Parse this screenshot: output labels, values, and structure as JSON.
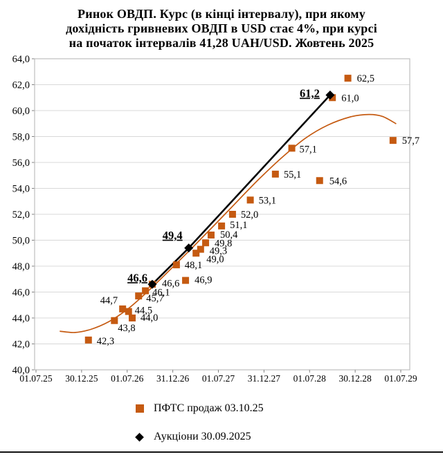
{
  "title": {
    "line1": "Ринок ОВДП. Курс (в кінці інтервалу), при якому",
    "line2": "дохідність гривневих ОВДП в USD стає  4%, при курсі",
    "line3": "на початок інтервалів 41,28 UAH/USD. Жовтень 2025"
  },
  "legend": {
    "items": [
      {
        "label": "ПФТС  продаж 03.10.25",
        "marker": "square",
        "color": "#C55A11"
      },
      {
        "label": "Аукціони 30.09.2025",
        "marker": "diamond",
        "color": "#000000"
      }
    ]
  },
  "colors": {
    "accent_orange": "#C55A11",
    "black": "#000000",
    "grid": "#D8D8D8",
    "plot_border": "#BFBFBF",
    "tick": "#808080"
  },
  "chart_data": {
    "type": "scatter",
    "title": "Ринок ОВДП. Курс (в кінці інтервалу), при якому дохідність гривневих ОВДП в USD стає 4%, при курсі на початок інтервалів 41,28 UAH/USD. Жовтень 2025",
    "grid": "horizontal",
    "legend_position": "bottom",
    "x_axis": {
      "tick_labels": [
        "01.07.25",
        "30.12.25",
        "01.07.26",
        "31.12.26",
        "01.07.27",
        "31.12.27",
        "01.07.28",
        "30.12.28",
        "01.07.29"
      ],
      "note": "point t values are in tick units, 0 = 01.07.25 … 8 = 01.07.29"
    },
    "y_axis": {
      "min": 40,
      "max": 64,
      "step": 2,
      "tick_labels": [
        "64,0",
        "62,0",
        "60,0",
        "58,0",
        "56,0",
        "54,0",
        "52,0",
        "50,0",
        "48,0",
        "46,0",
        "44,0",
        "42,0",
        "40,0"
      ]
    },
    "series": [
      {
        "name": "ПФТС  продаж 03.10.25",
        "marker": "square",
        "color": "#C55A11",
        "points": [
          {
            "t": 1.15,
            "v": 42.3,
            "label": "42,3",
            "dx": 12,
            "dy": 6
          },
          {
            "t": 1.72,
            "v": 43.8,
            "label": "43,8",
            "dx": 5,
            "dy": 15
          },
          {
            "t": 1.9,
            "v": 44.7,
            "label": "44,7",
            "dx": -7,
            "dy": -8,
            "anchor": "end"
          },
          {
            "t": 2.03,
            "v": 44.5,
            "label": "44,5",
            "dx": 9,
            "dy": 3
          },
          {
            "t": 2.11,
            "v": 44.0,
            "label": "44,0",
            "dx": 12,
            "dy": 4
          },
          {
            "t": 2.25,
            "v": 45.7,
            "label": "45,7",
            "dx": 11,
            "dy": 8
          },
          {
            "t": 2.4,
            "v": 46.1,
            "label": "46,1",
            "dx": 10,
            "dy": 7
          },
          {
            "t": 2.55,
            "v": 46.6,
            "label": "46,6",
            "dx": 14,
            "dy": 3
          },
          {
            "t": 3.08,
            "v": 48.1,
            "label": "48,1",
            "dx": 12,
            "dy": 5
          },
          {
            "t": 3.28,
            "v": 46.9,
            "label": "46,9",
            "dx": 13,
            "dy": 4
          },
          {
            "t": 3.51,
            "v": 49.0,
            "label": "49,0",
            "dx": 15,
            "dy": 13
          },
          {
            "t": 3.61,
            "v": 49.3,
            "label": "49,3",
            "dx": 13,
            "dy": 7
          },
          {
            "t": 3.72,
            "v": 49.8,
            "label": "49,8",
            "dx": 13,
            "dy": 5
          },
          {
            "t": 3.84,
            "v": 50.4,
            "label": "50,4",
            "dx": 13,
            "dy": 4
          },
          {
            "t": 4.07,
            "v": 51.1,
            "label": "51,1",
            "dx": 12,
            "dy": 3
          },
          {
            "t": 4.31,
            "v": 52.0,
            "label": "52,0",
            "dx": 12,
            "dy": 5
          },
          {
            "t": 4.7,
            "v": 53.1,
            "label": "53,1",
            "dx": 12,
            "dy": 5
          },
          {
            "t": 5.25,
            "v": 55.1,
            "label": "55,1",
            "dx": 12,
            "dy": 5
          },
          {
            "t": 5.61,
            "v": 57.1,
            "label": "57,1",
            "dx": 11,
            "dy": 6
          },
          {
            "t": 6.22,
            "v": 54.6,
            "label": "54,6",
            "dx": 14,
            "dy": 5
          },
          {
            "t": 6.5,
            "v": 61.0,
            "label": "61,0",
            "dx": 13,
            "dy": 5
          },
          {
            "t": 6.84,
            "v": 62.5,
            "label": "62,5",
            "dx": 13,
            "dy": 5
          },
          {
            "t": 7.83,
            "v": 57.7,
            "label": "57,7",
            "dx": 13,
            "dy": 5
          }
        ]
      },
      {
        "name": "Аукціони 30.09.2025",
        "marker": "diamond",
        "color": "#000000",
        "connected": true,
        "line_width": 2.6,
        "label_style": "bold-underline",
        "points": [
          {
            "t": 2.55,
            "v": 46.6,
            "label": "46,6",
            "dx": -7,
            "dy": -4,
            "anchor": "end"
          },
          {
            "t": 3.35,
            "v": 49.4,
            "label": "49,4",
            "dx": -9,
            "dy": -13,
            "anchor": "end"
          },
          {
            "t": 6.45,
            "v": 61.2,
            "label": "61,2",
            "dx": -15,
            "dy": 3,
            "anchor": "end"
          }
        ]
      }
    ],
    "trend_curve": {
      "color": "#C55A11",
      "width": 1.7,
      "points": [
        [
          0.52,
          42.98
        ],
        [
          0.85,
          42.88
        ],
        [
          1.2,
          43.12
        ],
        [
          1.6,
          43.72
        ],
        [
          2.0,
          44.66
        ],
        [
          2.4,
          45.88
        ],
        [
          2.9,
          47.58
        ],
        [
          3.4,
          49.33
        ],
        [
          3.9,
          51.12
        ],
        [
          4.4,
          52.95
        ],
        [
          4.9,
          54.75
        ],
        [
          5.4,
          56.4
        ],
        [
          5.9,
          57.85
        ],
        [
          6.4,
          58.88
        ],
        [
          6.9,
          59.52
        ],
        [
          7.3,
          59.7
        ],
        [
          7.6,
          59.55
        ],
        [
          7.9,
          58.98
        ]
      ]
    }
  }
}
